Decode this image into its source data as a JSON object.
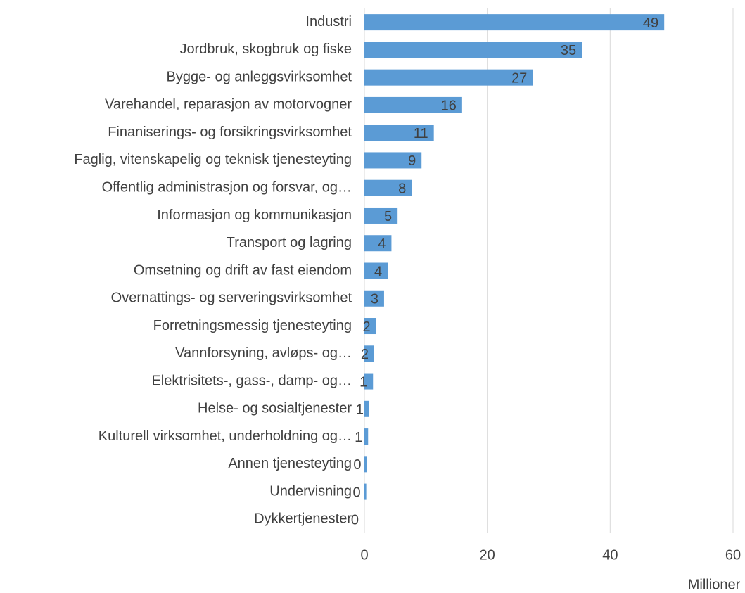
{
  "chart_data": {
    "type": "barh",
    "categories": [
      "Industri",
      "Jordbruk, skogbruk og fiske",
      "Bygge- og anleggsvirksomhet",
      "Varehandel, reparasjon av motorvogner",
      "Finaniserings- og forsikringsvirksomhet",
      "Faglig, vitenskapelig og teknisk tjenesteyting",
      "Offentlig administrasjon og forsvar, og…",
      "Informasjon og kommunikasjon",
      "Transport og lagring",
      "Omsetning og drift av fast eiendom",
      "Overnattings- og serveringsvirksomhet",
      "Forretningsmessig tjenesteyting",
      "Vannforsyning, avløps- og…",
      "Elektrisitets-, gass-, damp- og…",
      "Helse- og sosialtjenester",
      "Kulturell virksomhet, underholdning og…",
      "Annen tjenesteyting",
      "Undervisning",
      "Dykkertjenester"
    ],
    "values": [
      48.8,
      35.4,
      27.4,
      15.9,
      11.3,
      9.3,
      7.7,
      5.4,
      4.4,
      3.8,
      3.2,
      1.9,
      1.6,
      1.4,
      0.8,
      0.6,
      0.4,
      0.3,
      0
    ],
    "value_labels": [
      "49",
      "35",
      "27",
      "16",
      "11",
      "9",
      "8",
      "5",
      "4",
      "4",
      "3",
      "2",
      "2",
      "1",
      "1",
      "1",
      "0",
      "0",
      "0"
    ],
    "color": "#5b9bd5",
    "xlim": [
      0,
      60
    ],
    "xticks": [
      0,
      20,
      40,
      60
    ],
    "grid": true,
    "xlabel": "Millioner"
  }
}
